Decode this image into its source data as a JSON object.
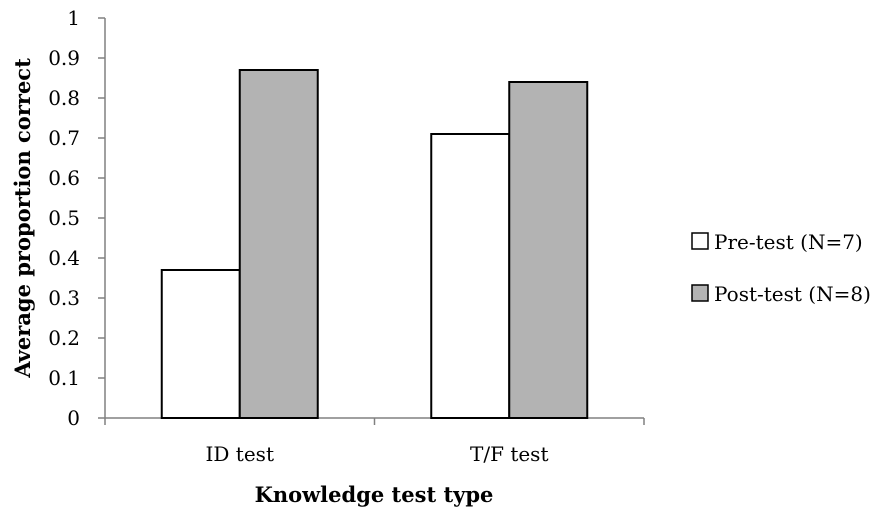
{
  "chart_data": {
    "type": "bar",
    "categories": [
      "ID test",
      "T/F test"
    ],
    "series": [
      {
        "name": "Pre-test (N=7)",
        "values": [
          0.37,
          0.71
        ],
        "color": "#ffffff"
      },
      {
        "name": "Post-test (N=8)",
        "values": [
          0.87,
          0.84
        ],
        "color": "#b3b3b3"
      }
    ],
    "xlabel": "Knowledge test type",
    "ylabel": "Average proportion correct",
    "ylim": [
      0,
      1
    ],
    "yticks": [
      "0",
      "0.1",
      "0.2",
      "0.3",
      "0.4",
      "0.5",
      "0.6",
      "0.7",
      "0.8",
      "0.9",
      "1"
    ],
    "grid": false,
    "legend_position": "right"
  }
}
